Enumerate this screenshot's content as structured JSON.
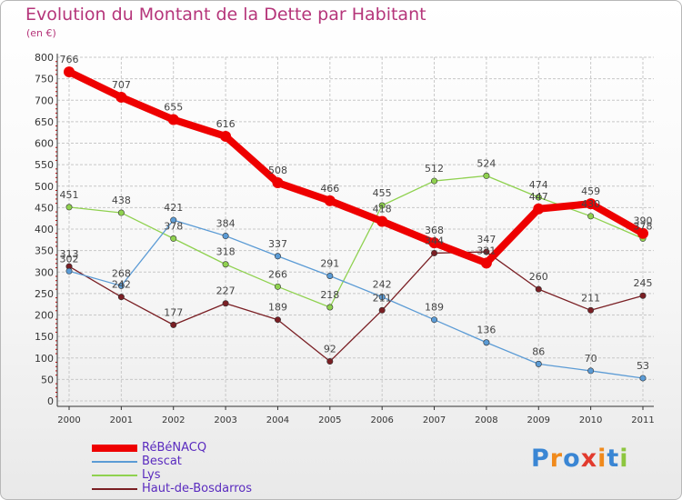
{
  "title": "Evolution du Montant de la Dette par Habitant",
  "unit": "(en €)",
  "logo": "Proxiti",
  "chart_data": {
    "type": "line",
    "title": "Evolution du Montant de la Dette par Habitant",
    "subtitle": "(en €)",
    "xlabel": "",
    "ylabel": "",
    "x": [
      "2000",
      "2001",
      "2002",
      "2003",
      "2004",
      "2005",
      "2006",
      "2007",
      "2008",
      "2009",
      "2010",
      "2011"
    ],
    "ylim": [
      0,
      800
    ],
    "yticks": [
      0,
      50,
      100,
      150,
      200,
      250,
      300,
      350,
      400,
      450,
      500,
      550,
      600,
      650,
      700,
      750,
      800
    ],
    "grid": true,
    "legend": "bottom-left",
    "series": [
      {
        "name": "Haut-de-Bosdarros",
        "color": "#7a1f24",
        "values": [
          313,
          242,
          177,
          227,
          189,
          92,
          211,
          344,
          347,
          260,
          211,
          245
        ],
        "labels": [
          "313",
          "242",
          "177",
          "227",
          "189",
          "92",
          "211",
          "344",
          "347",
          "260",
          "211",
          "245"
        ]
      },
      {
        "name": "Lys",
        "color": "#8fd14f",
        "values": [
          451,
          438,
          378,
          318,
          266,
          218,
          455,
          512,
          524,
          474,
          430,
          378
        ],
        "labels": [
          "451",
          "438",
          "378",
          "318",
          "266",
          "218",
          "455",
          "512",
          "524",
          "474",
          "430",
          "378"
        ]
      },
      {
        "name": "Bescat",
        "color": "#5b9bd5",
        "values": [
          302,
          268,
          421,
          384,
          337,
          291,
          242,
          189,
          136,
          86,
          70,
          53
        ],
        "labels": [
          "302",
          "268",
          "421",
          "384",
          "337",
          "291",
          "242",
          "189",
          "136",
          "86",
          "70",
          "53"
        ]
      },
      {
        "name": "RéBéNACQ",
        "color": "#ee0000",
        "values": [
          766,
          707,
          655,
          616,
          508,
          466,
          418,
          368,
          321,
          447,
          459,
          390
        ],
        "labels": [
          "766",
          "707",
          "655",
          "616",
          "508",
          "466",
          "418",
          "368",
          "321",
          "447",
          "459",
          "390"
        ]
      }
    ]
  }
}
